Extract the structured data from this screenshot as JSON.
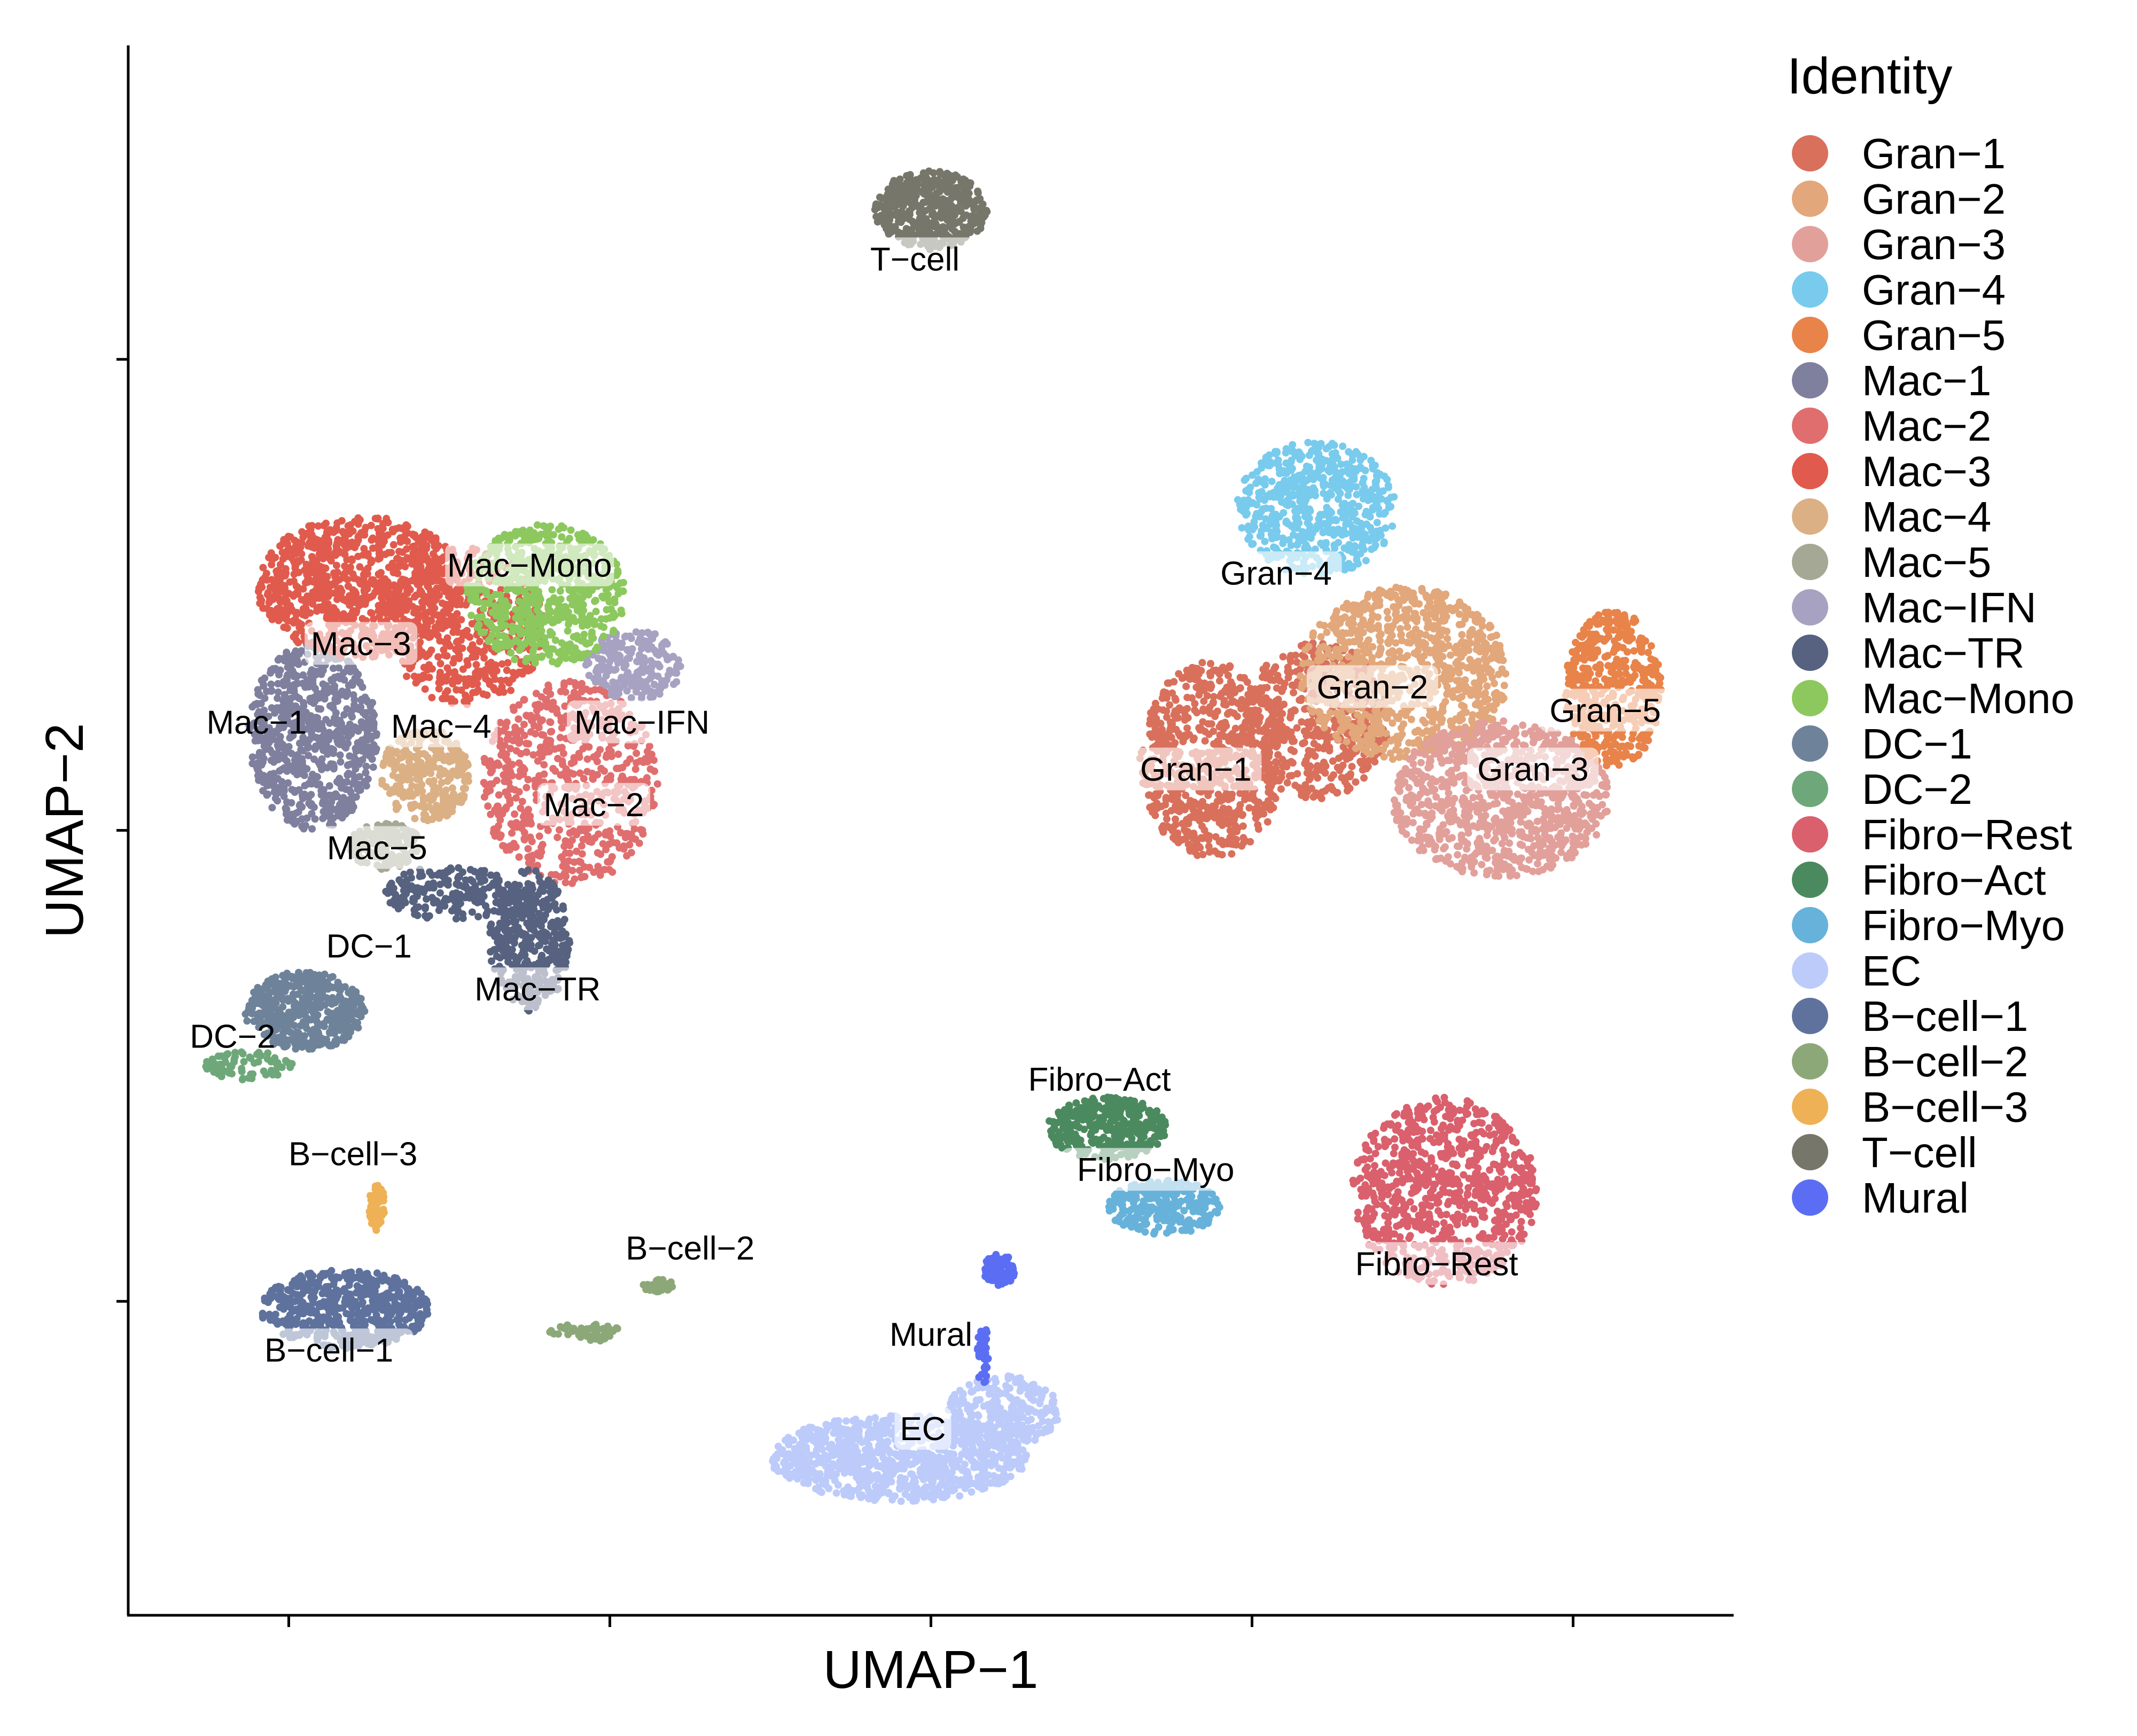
{
  "chart_data": {
    "type": "scatter",
    "title": "",
    "xlabel": "UMAP−1",
    "ylabel": "UMAP−2",
    "xlim": [
      -10,
      10
    ],
    "ylim": [
      -10,
      10
    ],
    "x_ticks": [
      -8,
      -4,
      0,
      4,
      8
    ],
    "y_ticks": [
      -6,
      0,
      6
    ],
    "tick_labels_shown": false,
    "grid": false,
    "legend": {
      "title": "Identity",
      "placement": "right"
    },
    "clusters": [
      {
        "name": "Gran−1",
        "color": "#d9705c",
        "label_x": 3.3,
        "label_y": 0.7,
        "label_style": "box",
        "blobs": [
          {
            "cx": 3.5,
            "cy": 0.9,
            "rx": 0.9,
            "ry": 1.25,
            "n": 750
          },
          {
            "cx": 4.8,
            "cy": 1.4,
            "rx": 0.9,
            "ry": 1.0,
            "n": 500
          }
        ]
      },
      {
        "name": "Gran−2",
        "color": "#e2a77a",
        "label_x": 5.5,
        "label_y": 1.75,
        "label_style": "box",
        "blobs": [
          {
            "cx": 5.9,
            "cy": 2.0,
            "rx": 1.3,
            "ry": 1.1,
            "n": 900
          }
        ]
      },
      {
        "name": "Gran−3",
        "color": "#e2a09b",
        "label_x": 7.5,
        "label_y": 0.7,
        "label_style": "box",
        "blobs": [
          {
            "cx": 7.1,
            "cy": 0.4,
            "rx": 1.35,
            "ry": 1.0,
            "n": 900
          }
        ]
      },
      {
        "name": "Gran−4",
        "color": "#78cbec",
        "label_x": 4.3,
        "label_y": 3.2,
        "label_style": "box",
        "blobs": [
          {
            "cx": 4.8,
            "cy": 4.1,
            "rx": 1.0,
            "ry": 0.85,
            "n": 600
          }
        ]
      },
      {
        "name": "Gran−5",
        "color": "#e8834a",
        "label_x": 8.4,
        "label_y": 1.45,
        "label_style": "box",
        "blobs": [
          {
            "cx": 8.5,
            "cy": 1.8,
            "rx": 0.6,
            "ry": 1.0,
            "n": 450
          }
        ]
      },
      {
        "name": "Mac−1",
        "color": "#7f7f9e",
        "label_x": -8.4,
        "label_y": 1.3,
        "label_style": "plain",
        "blobs": [
          {
            "cx": -7.7,
            "cy": 1.2,
            "rx": 0.8,
            "ry": 1.2,
            "n": 700
          }
        ]
      },
      {
        "name": "Mac−2",
        "color": "#e06e6e",
        "label_x": -4.2,
        "label_y": 0.25,
        "label_style": "box",
        "blobs": [
          {
            "cx": -4.5,
            "cy": 0.6,
            "rx": 1.1,
            "ry": 1.3,
            "n": 650
          }
        ]
      },
      {
        "name": "Mac−3",
        "color": "#e05b4d",
        "label_x": -7.1,
        "label_y": 2.3,
        "label_style": "box",
        "blobs": [
          {
            "cx": -7.1,
            "cy": 3.1,
            "rx": 1.3,
            "ry": 0.9,
            "n": 900
          },
          {
            "cx": -5.8,
            "cy": 2.6,
            "rx": 1.0,
            "ry": 1.0,
            "n": 500
          }
        ]
      },
      {
        "name": "Mac−4",
        "color": "#dbb085",
        "label_x": -6.1,
        "label_y": 1.25,
        "label_style": "box",
        "blobs": [
          {
            "cx": -6.3,
            "cy": 0.7,
            "rx": 0.55,
            "ry": 0.6,
            "n": 280
          }
        ]
      },
      {
        "name": "Mac−5",
        "color": "#a5a894",
        "label_x": -6.9,
        "label_y": -0.3,
        "label_style": "box",
        "blobs": [
          {
            "cx": -6.8,
            "cy": -0.2,
            "rx": 0.45,
            "ry": 0.3,
            "n": 160
          }
        ]
      },
      {
        "name": "Mac−IFN",
        "color": "#a7a2c1",
        "label_x": -3.6,
        "label_y": 1.3,
        "label_style": "box",
        "blobs": [
          {
            "cx": -3.7,
            "cy": 2.1,
            "rx": 0.6,
            "ry": 0.45,
            "n": 220
          }
        ]
      },
      {
        "name": "Mac−TR",
        "color": "#56627f",
        "label_x": -4.9,
        "label_y": -2.1,
        "label_style": "box",
        "blobs": [
          {
            "cx": -5.0,
            "cy": -1.4,
            "rx": 0.5,
            "ry": 0.9,
            "n": 380
          },
          {
            "cx": -6.0,
            "cy": -0.8,
            "rx": 0.8,
            "ry": 0.35,
            "n": 200
          }
        ]
      },
      {
        "name": "Mac−Mono",
        "color": "#8cc85e",
        "label_x": -5.0,
        "label_y": 3.3,
        "label_style": "box",
        "blobs": [
          {
            "cx": -4.8,
            "cy": 3.0,
            "rx": 1.0,
            "ry": 0.9,
            "n": 650
          }
        ]
      },
      {
        "name": "DC−1",
        "color": "#6e8399",
        "label_x": -7.0,
        "label_y": -1.55,
        "label_style": "box",
        "blobs": [
          {
            "cx": -7.8,
            "cy": -2.3,
            "rx": 0.75,
            "ry": 0.5,
            "n": 450
          }
        ]
      },
      {
        "name": "DC−2",
        "color": "#6ea87a",
        "label_x": -8.7,
        "label_y": -2.7,
        "label_style": "plain",
        "blobs": [
          {
            "cx": -8.5,
            "cy": -3.0,
            "rx": 0.55,
            "ry": 0.18,
            "n": 80
          }
        ]
      },
      {
        "name": "Fibro−Rest",
        "color": "#d9606c",
        "label_x": 6.3,
        "label_y": -5.6,
        "label_style": "box",
        "blobs": [
          {
            "cx": 6.4,
            "cy": -4.6,
            "rx": 1.15,
            "ry": 1.2,
            "n": 800
          }
        ]
      },
      {
        "name": "Fibro−Act",
        "color": "#4b8a5f",
        "label_x": 2.1,
        "label_y": -3.25,
        "label_style": "plain",
        "blobs": [
          {
            "cx": 2.2,
            "cy": -3.8,
            "rx": 0.75,
            "ry": 0.4,
            "n": 350
          }
        ]
      },
      {
        "name": "Fibro−Myo",
        "color": "#67b2da",
        "label_x": 2.8,
        "label_y": -4.4,
        "label_style": "box",
        "blobs": [
          {
            "cx": 2.9,
            "cy": -4.8,
            "rx": 0.7,
            "ry": 0.35,
            "n": 250
          }
        ]
      },
      {
        "name": "EC",
        "color": "#bccbfa",
        "label_x": -0.1,
        "label_y": -7.7,
        "label_style": "box",
        "blobs": [
          {
            "cx": -0.4,
            "cy": -8.0,
            "rx": 1.6,
            "ry": 0.55,
            "n": 900
          },
          {
            "cx": 0.9,
            "cy": -7.4,
            "rx": 0.7,
            "ry": 0.45,
            "n": 250
          }
        ]
      },
      {
        "name": "B−cell−1",
        "color": "#5e729d",
        "label_x": -7.5,
        "label_y": -6.7,
        "label_style": "box",
        "blobs": [
          {
            "cx": -7.3,
            "cy": -6.1,
            "rx": 1.05,
            "ry": 0.5,
            "n": 550
          }
        ]
      },
      {
        "name": "B−cell−2",
        "color": "#8ca878",
        "label_x": -3.0,
        "label_y": -5.4,
        "label_style": "plain",
        "blobs": [
          {
            "cx": -4.3,
            "cy": -6.4,
            "rx": 0.45,
            "ry": 0.12,
            "n": 50
          },
          {
            "cx": -3.4,
            "cy": -5.8,
            "rx": 0.2,
            "ry": 0.08,
            "n": 30
          }
        ]
      },
      {
        "name": "B−cell−3",
        "color": "#eeb155",
        "label_x": -7.2,
        "label_y": -4.2,
        "label_style": "plain",
        "blobs": [
          {
            "cx": -6.9,
            "cy": -4.8,
            "rx": 0.1,
            "ry": 0.3,
            "n": 60
          }
        ]
      },
      {
        "name": "T−cell",
        "color": "#76766a",
        "label_x": -0.2,
        "label_y": 7.2,
        "label_style": "box",
        "blobs": [
          {
            "cx": 0.0,
            "cy": 7.9,
            "rx": 0.7,
            "ry": 0.5,
            "n": 450
          }
        ]
      },
      {
        "name": "Mural",
        "color": "#5b6ef3",
        "label_x": 0.0,
        "label_y": -6.5,
        "label_style": "plain",
        "blobs": [
          {
            "cx": 0.85,
            "cy": -5.6,
            "rx": 0.2,
            "ry": 0.2,
            "n": 90
          },
          {
            "cx": 0.65,
            "cy": -6.7,
            "rx": 0.07,
            "ry": 0.45,
            "n": 45
          }
        ]
      }
    ]
  }
}
